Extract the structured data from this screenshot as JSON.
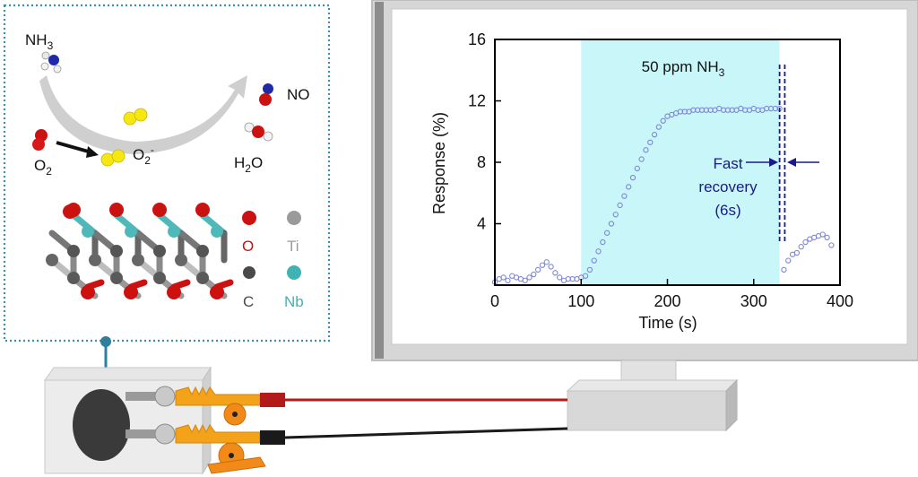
{
  "scheme": {
    "nh3_label_main": "NH",
    "nh3_label_sub": "3",
    "no_label": "NO",
    "o2_label_main": "O",
    "o2_label_sub": "2",
    "o2minus_label_main": "O",
    "o2minus_label_sub": "2",
    "o2minus_label_sup": "-",
    "h2o_label_h": "H",
    "h2o_label_sub": "2",
    "h2o_label_o": "O"
  },
  "legend": {
    "items": [
      {
        "symbol": "O",
        "color": "#cc1111"
      },
      {
        "symbol": "Ti",
        "color": "#9a9a9a"
      },
      {
        "symbol": "C",
        "color": "#4a4a4a"
      },
      {
        "symbol": "Nb",
        "color": "#3fb3b3"
      }
    ]
  },
  "chart_data": {
    "type": "scatter",
    "xlabel": "Time (s)",
    "ylabel": "Response (%)",
    "xlim": [
      0,
      400
    ],
    "ylim": [
      0,
      16
    ],
    "xticks": [
      0,
      100,
      200,
      300,
      400
    ],
    "yticks": [
      4,
      8,
      12,
      16
    ],
    "highlight": {
      "x_start": 100,
      "x_end": 330,
      "label_main": "50 ppm NH",
      "label_sub": "3",
      "color": "#c9f6f8"
    },
    "annotation": {
      "lines": [
        "Fast",
        "recovery",
        "(6s)"
      ],
      "x_markers": [
        330,
        336
      ],
      "color": "#1a1a8c"
    },
    "marker_color": "#7d86d6",
    "series": [
      {
        "x": [
          0,
          5,
          10,
          15,
          20,
          25,
          30,
          35,
          40,
          45,
          50,
          55,
          60,
          65,
          70,
          75,
          80,
          85,
          90,
          95,
          100,
          105,
          110,
          115,
          120,
          125,
          130,
          135,
          140,
          145,
          150,
          155,
          160,
          165,
          170,
          175,
          180,
          185,
          190,
          195,
          200,
          205,
          210,
          215,
          220,
          225,
          230,
          235,
          240,
          245,
          250,
          255,
          260,
          265,
          270,
          275,
          280,
          285,
          290,
          295,
          300,
          305,
          310,
          315,
          320,
          325,
          330,
          335,
          340,
          345,
          350,
          355,
          360,
          365,
          370,
          375,
          380,
          385,
          390
        ],
        "y": [
          0.2,
          0.4,
          0.5,
          0.3,
          0.6,
          0.5,
          0.4,
          0.3,
          0.5,
          0.7,
          1.0,
          1.3,
          1.5,
          1.2,
          0.8,
          0.5,
          0.3,
          0.4,
          0.4,
          0.4,
          0.5,
          0.6,
          1.0,
          1.6,
          2.2,
          2.8,
          3.4,
          4.0,
          4.6,
          5.2,
          5.8,
          6.4,
          7.0,
          7.6,
          8.2,
          8.8,
          9.3,
          9.8,
          10.3,
          10.7,
          11.0,
          11.1,
          11.2,
          11.3,
          11.3,
          11.3,
          11.4,
          11.4,
          11.4,
          11.4,
          11.4,
          11.4,
          11.5,
          11.4,
          11.4,
          11.4,
          11.4,
          11.5,
          11.4,
          11.4,
          11.5,
          11.4,
          11.4,
          11.5,
          11.5,
          11.5,
          11.5,
          1.0,
          1.6,
          2.0,
          2.1,
          2.5,
          2.8,
          3.0,
          3.1,
          3.2,
          3.3,
          3.1,
          2.6
        ]
      }
    ]
  }
}
